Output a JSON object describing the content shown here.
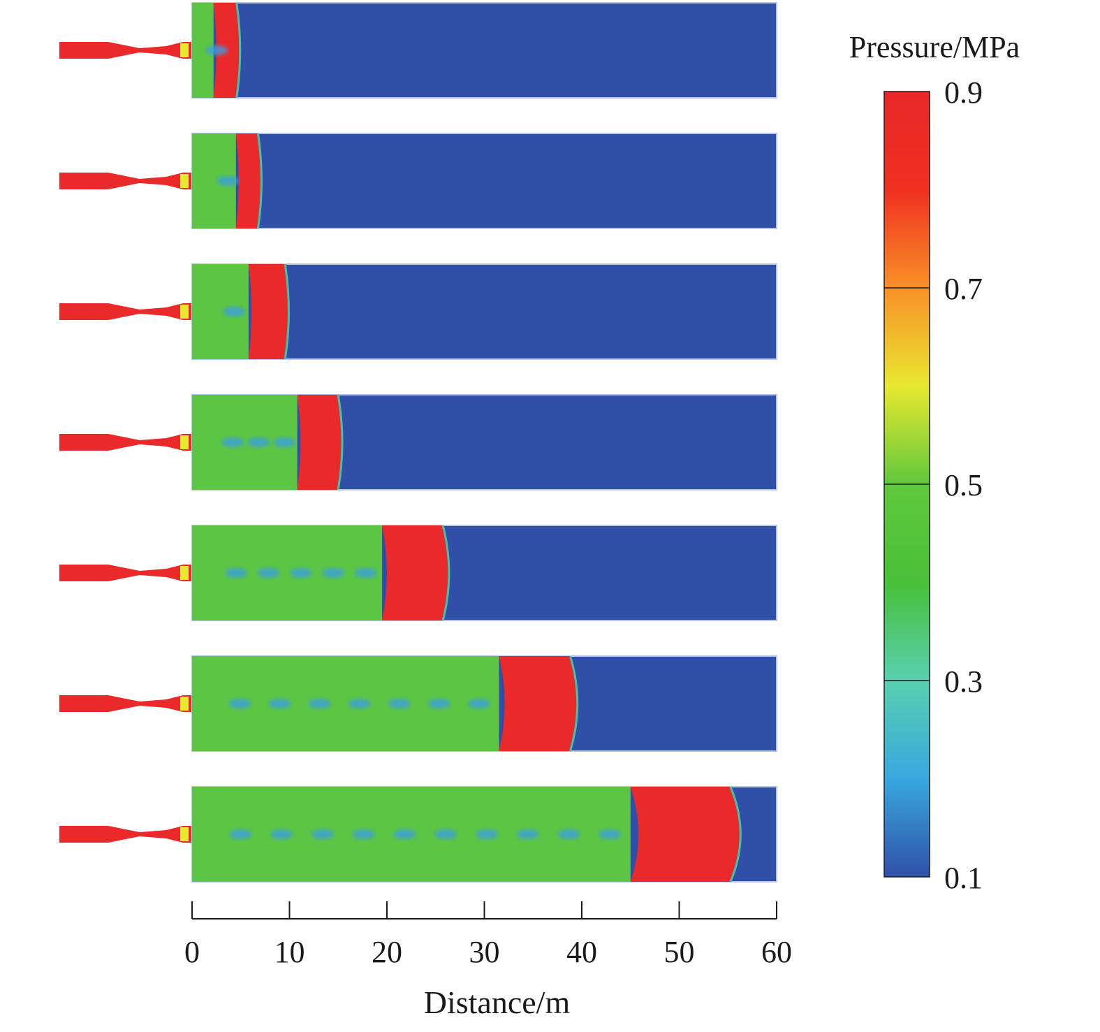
{
  "chart_data": {
    "type": "heatmap",
    "title": "",
    "xlabel": "Distance/m",
    "ylabel": "",
    "xlim": [
      0,
      60
    ],
    "x_ticks": [
      "0",
      "10",
      "20",
      "30",
      "40",
      "50",
      "60"
    ],
    "colorbar": {
      "label": "Pressure/MPa",
      "range": [
        0.1,
        0.9
      ],
      "ticks": [
        "0.9",
        "0.7",
        "0.5",
        "0.3",
        "0.1"
      ],
      "colors": [
        "#3050a8",
        "#38a8e0",
        "#58d0b0",
        "#48c038",
        "#60c83c",
        "#e8e830",
        "#f89028",
        "#f03020",
        "#e82828"
      ]
    },
    "colors": {
      "low": "#3050a8",
      "high": "#ea2a2a",
      "mid": "#5cc544"
    },
    "snapshots": [
      {
        "front_m": 5.0,
        "high_start_m": 2.2
      },
      {
        "front_m": 7.2,
        "high_start_m": 4.5
      },
      {
        "front_m": 10.0,
        "high_start_m": 5.8
      },
      {
        "front_m": 15.5,
        "high_start_m": 10.8
      },
      {
        "front_m": 26.5,
        "high_start_m": 19.5
      },
      {
        "front_m": 39.7,
        "high_start_m": 31.5
      },
      {
        "front_m": 56.5,
        "high_start_m": 45.0
      }
    ]
  }
}
